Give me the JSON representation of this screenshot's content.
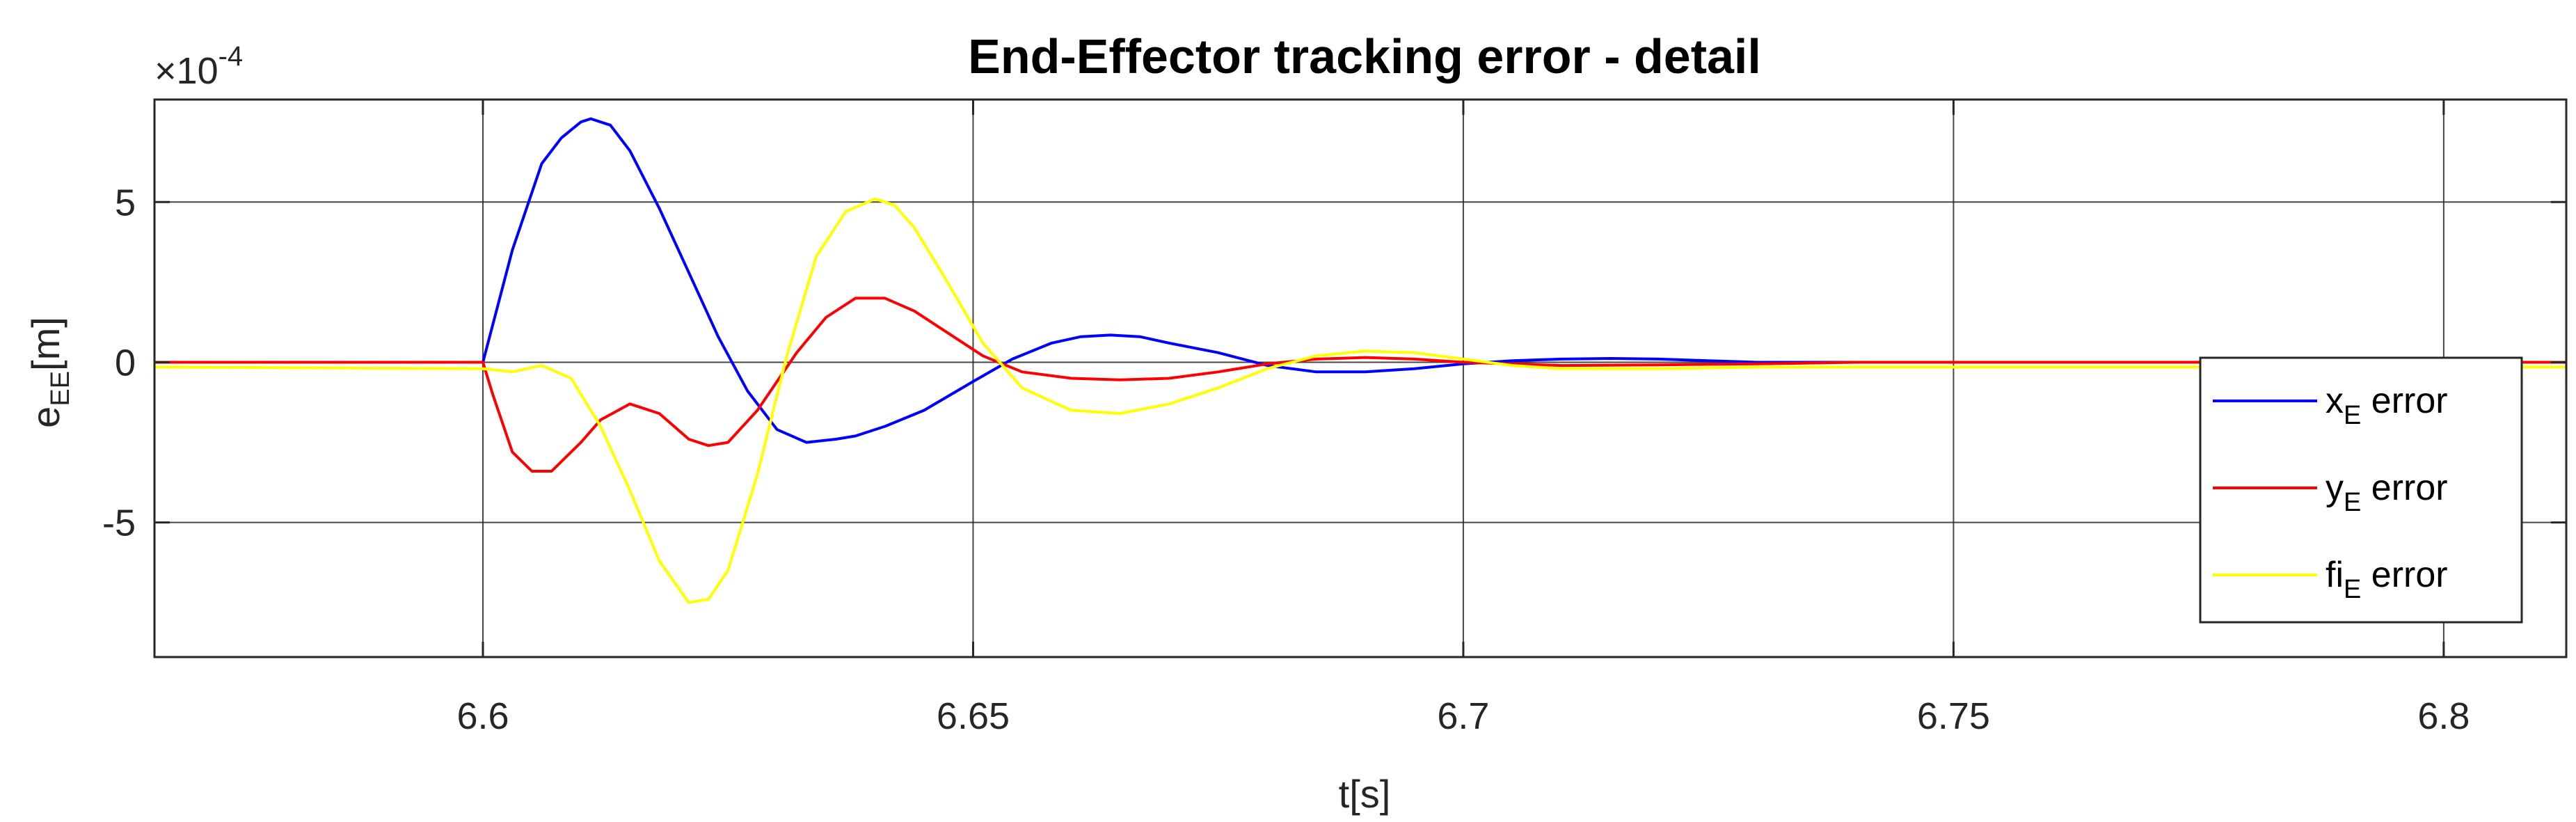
{
  "chart_data": {
    "type": "line",
    "title": "End-Effector tracking error - detail",
    "xlabel": "t[s]",
    "ylabel": {
      "main": "e",
      "sub": "EE",
      "unit": "[m]"
    },
    "exponent": {
      "base": "×10",
      "power": "-4"
    },
    "xlim": [
      6.5665,
      6.8125
    ],
    "ylim": [
      -9.2,
      8.2
    ],
    "xticks": [
      6.6,
      6.65,
      6.7,
      6.75,
      6.8
    ],
    "xtick_labels": [
      "6.6",
      "6.65",
      "6.7",
      "6.75",
      "6.8"
    ],
    "yticks": [
      -5,
      0,
      5
    ],
    "ytick_labels": [
      "-5",
      "0",
      "5"
    ],
    "grid": true,
    "legend_position": "right",
    "series": [
      {
        "name": {
          "main": "x",
          "sub": "E",
          "rest": " error"
        },
        "color": "#0000ff",
        "x": [
          6.5665,
          6.6,
          6.603,
          6.606,
          6.608,
          6.61,
          6.611,
          6.613,
          6.615,
          6.618,
          6.621,
          6.624,
          6.627,
          6.63,
          6.633,
          6.636,
          6.638,
          6.641,
          6.645,
          6.65,
          6.654,
          6.658,
          6.661,
          6.664,
          6.667,
          6.67,
          6.675,
          6.68,
          6.685,
          6.69,
          6.695,
          6.7,
          6.705,
          6.71,
          6.715,
          6.72,
          6.725,
          6.73,
          6.74,
          6.75,
          6.8125
        ],
        "y": [
          0,
          0,
          3.5,
          6.2,
          7.0,
          7.5,
          7.6,
          7.4,
          6.6,
          4.8,
          2.8,
          0.8,
          -0.9,
          -2.1,
          -2.5,
          -2.4,
          -2.3,
          -2.0,
          -1.5,
          -0.6,
          0.1,
          0.6,
          0.8,
          0.85,
          0.8,
          0.6,
          0.3,
          -0.1,
          -0.3,
          -0.3,
          -0.2,
          -0.05,
          0.05,
          0.1,
          0.12,
          0.1,
          0.05,
          0,
          0,
          0,
          0
        ]
      },
      {
        "name": {
          "main": "y",
          "sub": "E",
          "rest": " error"
        },
        "color": "#ff0000",
        "x": [
          6.5665,
          6.6,
          6.601,
          6.603,
          6.605,
          6.607,
          6.61,
          6.612,
          6.615,
          6.618,
          6.621,
          6.623,
          6.625,
          6.628,
          6.632,
          6.635,
          6.638,
          6.641,
          6.644,
          6.647,
          6.651,
          6.655,
          6.66,
          6.665,
          6.67,
          6.675,
          6.68,
          6.685,
          6.69,
          6.695,
          6.7,
          6.705,
          6.71,
          6.72,
          6.73,
          6.74,
          6.8125
        ],
        "y": [
          0,
          0,
          -1.0,
          -2.8,
          -3.4,
          -3.4,
          -2.5,
          -1.8,
          -1.3,
          -1.6,
          -2.4,
          -2.6,
          -2.5,
          -1.5,
          0.3,
          1.4,
          2.0,
          2.0,
          1.6,
          1.0,
          0.2,
          -0.3,
          -0.5,
          -0.55,
          -0.5,
          -0.3,
          -0.05,
          0.1,
          0.15,
          0.1,
          0,
          -0.05,
          -0.1,
          -0.08,
          -0.05,
          0,
          0
        ]
      },
      {
        "name": {
          "main": "fi",
          "sub": "E",
          "rest": " error"
        },
        "color": "#ffff00",
        "x": [
          6.5665,
          6.6,
          6.603,
          6.606,
          6.609,
          6.612,
          6.615,
          6.618,
          6.621,
          6.623,
          6.625,
          6.628,
          6.631,
          6.634,
          6.637,
          6.64,
          6.642,
          6.644,
          6.647,
          6.651,
          6.655,
          6.66,
          6.665,
          6.67,
          6.675,
          6.68,
          6.685,
          6.69,
          6.695,
          6.7,
          6.705,
          6.71,
          6.72,
          6.73,
          6.74,
          6.8125
        ],
        "y": [
          -0.15,
          -0.2,
          -0.3,
          -0.1,
          -0.5,
          -2.0,
          -4.0,
          -6.2,
          -7.5,
          -7.4,
          -6.5,
          -3.5,
          0.2,
          3.3,
          4.7,
          5.1,
          4.9,
          4.2,
          2.7,
          0.6,
          -0.8,
          -1.5,
          -1.6,
          -1.3,
          -0.8,
          -0.2,
          0.2,
          0.35,
          0.3,
          0.1,
          -0.1,
          -0.2,
          -0.2,
          -0.15,
          -0.15,
          -0.15
        ]
      }
    ]
  }
}
